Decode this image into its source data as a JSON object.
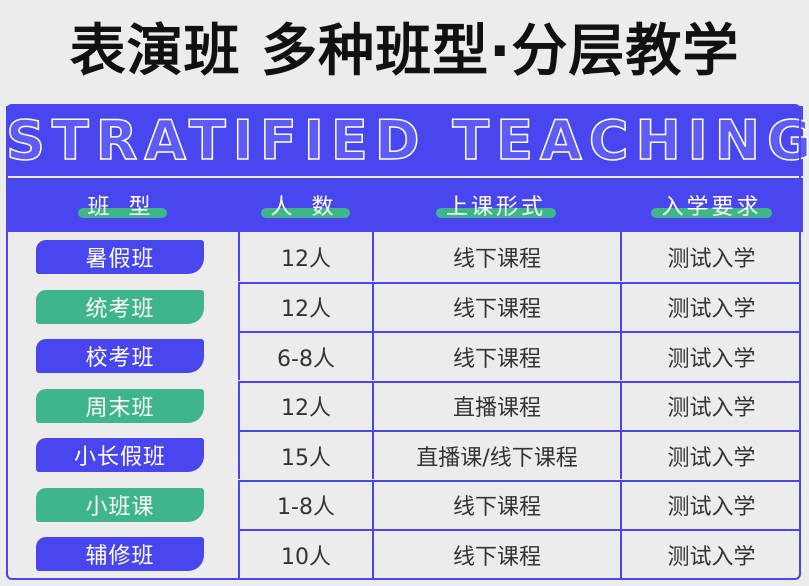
{
  "title": "表演班 多种班型·分层教学",
  "banner": "STRATIFIED TEACHING",
  "colors": {
    "blue": "#4a46ef",
    "green": "#3fb68a"
  },
  "headers": [
    "班 型",
    "人 数",
    "上课形式",
    "入学要求"
  ],
  "rows": [
    {
      "type": "暑假班",
      "size": "12人",
      "format": "线下课程",
      "req": "测试入学",
      "pill": "blue"
    },
    {
      "type": "统考班",
      "size": "12人",
      "format": "线下课程",
      "req": "测试入学",
      "pill": "green"
    },
    {
      "type": "校考班",
      "size": "6-8人",
      "format": "线下课程",
      "req": "测试入学",
      "pill": "blue"
    },
    {
      "type": "周末班",
      "size": "12人",
      "format": "直播课程",
      "req": "测试入学",
      "pill": "green"
    },
    {
      "type": "小长假班",
      "size": "15人",
      "format": "直播课/线下课程",
      "req": "测试入学",
      "pill": "blue"
    },
    {
      "type": "小班课",
      "size": "1-8人",
      "format": "线下课程",
      "req": "测试入学",
      "pill": "green"
    },
    {
      "type": "辅修班",
      "size": "10人",
      "format": "线下课程",
      "req": "测试入学",
      "pill": "blue"
    }
  ]
}
